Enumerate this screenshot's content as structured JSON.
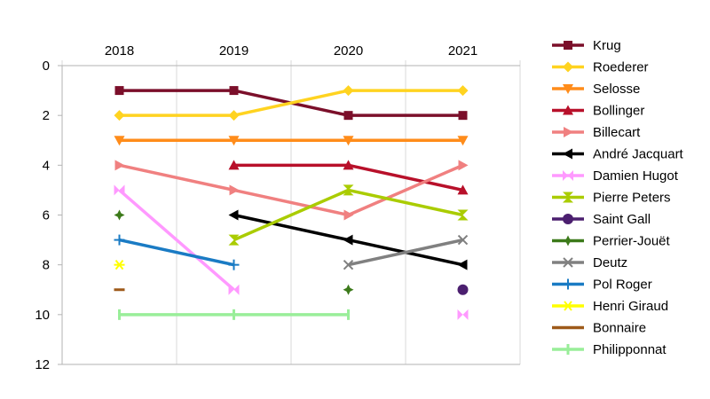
{
  "chart_data": {
    "type": "line",
    "x_axis_position": "top",
    "y_axis_reversed": true,
    "categories": [
      "2018",
      "2019",
      "2020",
      "2021"
    ],
    "ylim": [
      0,
      12
    ],
    "yticks": [
      0,
      2,
      4,
      6,
      8,
      10,
      12
    ],
    "grid": "vertical",
    "legend_position": "right",
    "series": [
      {
        "name": "Krug",
        "color": "#7b0f2a",
        "marker": "square",
        "values": [
          1,
          1,
          2,
          2
        ]
      },
      {
        "name": "Roederer",
        "color": "#ffd320",
        "marker": "diamond",
        "values": [
          2,
          2,
          1,
          1
        ]
      },
      {
        "name": "Selosse",
        "color": "#ff8c1a",
        "marker": "triangle-down",
        "values": [
          3,
          3,
          3,
          3
        ]
      },
      {
        "name": "Bollinger",
        "color": "#b8102a",
        "marker": "triangle-up",
        "values": [
          null,
          4,
          4,
          5
        ]
      },
      {
        "name": "Billecart",
        "color": "#f08080",
        "marker": "arrow-right",
        "values": [
          4,
          5,
          6,
          4
        ]
      },
      {
        "name": "André Jacquart",
        "color": "#000000",
        "marker": "arrow-left",
        "values": [
          null,
          6,
          7,
          8
        ]
      },
      {
        "name": "Damien Hugot",
        "color": "#ff99ff",
        "marker": "bowtie",
        "values": [
          5,
          9,
          null,
          10
        ]
      },
      {
        "name": "Pierre Peters",
        "color": "#aacc00",
        "marker": "hourglass",
        "values": [
          null,
          7,
          5,
          6
        ]
      },
      {
        "name": "Saint Gall",
        "color": "#4b1f6f",
        "marker": "circle",
        "values": [
          null,
          null,
          null,
          9
        ]
      },
      {
        "name": "Perrier-Jouët",
        "color": "#3c7a1a",
        "marker": "star4",
        "values": [
          6,
          null,
          9,
          null
        ]
      },
      {
        "name": "Deutz",
        "color": "#808080",
        "marker": "x",
        "values": [
          null,
          null,
          8,
          7
        ]
      },
      {
        "name": "Pol Roger",
        "color": "#1a7bc4",
        "marker": "plus",
        "values": [
          7,
          8,
          null,
          null
        ]
      },
      {
        "name": "Henri Giraud",
        "color": "#ffff00",
        "marker": "asterisk",
        "values": [
          8,
          null,
          null,
          null
        ]
      },
      {
        "name": "Bonnaire",
        "color": "#9e5a1a",
        "marker": "dash",
        "values": [
          9,
          null,
          null,
          null
        ]
      },
      {
        "name": "Philipponnat",
        "color": "#99ee99",
        "marker": "vbar",
        "values": [
          10,
          10,
          10,
          null
        ]
      }
    ]
  }
}
